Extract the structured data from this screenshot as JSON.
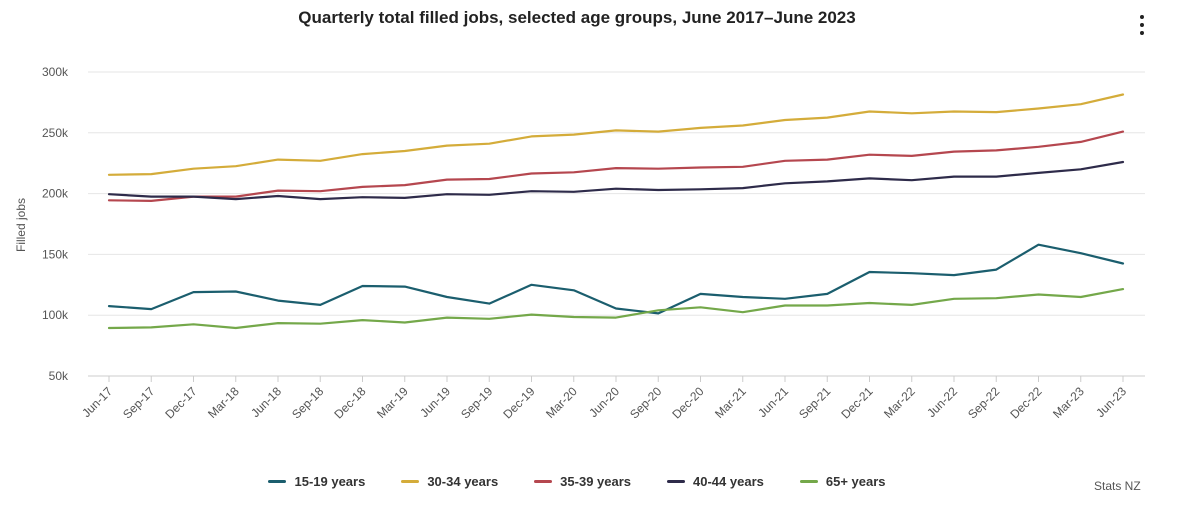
{
  "chart_data": {
    "type": "line",
    "title": "Quarterly total filled jobs, selected age groups, June 2017–June 2023",
    "xlabel": "",
    "ylabel": "Filled jobs",
    "credit": "Stats NZ",
    "ylim": [
      50000,
      300000
    ],
    "yticks": [
      50000,
      100000,
      150000,
      200000,
      250000,
      300000
    ],
    "ytick_labels": [
      "50k",
      "100k",
      "150k",
      "200k",
      "250k",
      "300k"
    ],
    "grid": true,
    "legend_position": "bottom",
    "categories": [
      "Jun-17",
      "Sep-17",
      "Dec-17",
      "Mar-18",
      "Jun-18",
      "Sep-18",
      "Dec-18",
      "Mar-19",
      "Jun-19",
      "Sep-19",
      "Dec-19",
      "Mar-20",
      "Jun-20",
      "Sep-20",
      "Dec-20",
      "Mar-21",
      "Jun-21",
      "Sep-21",
      "Dec-21",
      "Mar-22",
      "Jun-22",
      "Sep-22",
      "Dec-22",
      "Mar-23",
      "Jun-23"
    ],
    "series": [
      {
        "name": "15-19 years",
        "color": "#1b5e6e",
        "values": [
          107500,
          105000,
          119000,
          119500,
          112000,
          108500,
          124000,
          123500,
          115000,
          109500,
          125000,
          120500,
          105500,
          101500,
          117500,
          115000,
          113500,
          117500,
          135500,
          134500,
          133000,
          137500,
          158000,
          151000,
          142500
        ]
      },
      {
        "name": "30-34 years",
        "color": "#d4ac3a",
        "values": [
          215500,
          216000,
          220500,
          222500,
          228000,
          227000,
          232500,
          235000,
          239500,
          241000,
          247000,
          248500,
          252000,
          251000,
          254000,
          256000,
          260500,
          262500,
          267500,
          266000,
          267500,
          267000,
          270000,
          273500,
          281500
        ]
      },
      {
        "name": "35-39 years",
        "color": "#b5474f",
        "values": [
          194500,
          194000,
          197500,
          197500,
          202500,
          202000,
          205500,
          207000,
          211500,
          212000,
          216500,
          217500,
          221000,
          220500,
          221500,
          222000,
          227000,
          228000,
          232000,
          231000,
          234500,
          235500,
          238500,
          242500,
          251000
        ]
      },
      {
        "name": "40-44 years",
        "color": "#2e2b4a",
        "values": [
          199500,
          197500,
          197500,
          195500,
          198000,
          195500,
          197000,
          196500,
          199500,
          199000,
          202000,
          201500,
          204000,
          203000,
          203500,
          204500,
          208500,
          210000,
          212500,
          211000,
          214000,
          214000,
          217000,
          220000,
          226000
        ]
      },
      {
        "name": "65+ years",
        "color": "#74a84a",
        "values": [
          89500,
          90000,
          92500,
          89500,
          93500,
          93000,
          96000,
          94000,
          98000,
          97000,
          100500,
          98500,
          98000,
          104000,
          106500,
          102500,
          108000,
          108000,
          110000,
          108500,
          113500,
          114000,
          117000,
          115000,
          121500
        ]
      }
    ]
  }
}
